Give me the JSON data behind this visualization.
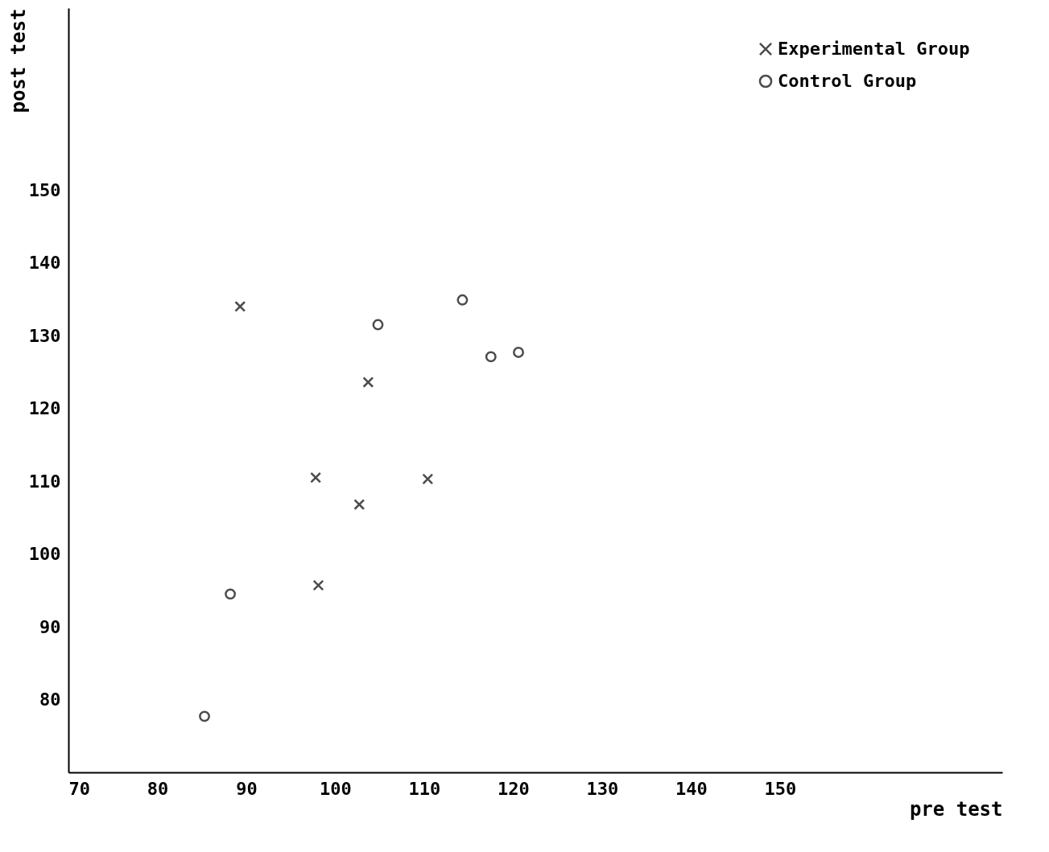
{
  "chart_data": {
    "type": "scatter",
    "xlabel": "pre test",
    "ylabel": "post test",
    "xlim": [
      70,
      175
    ],
    "ylim": [
      70,
      175
    ],
    "xticks": [
      70,
      80,
      90,
      100,
      110,
      120,
      130,
      140,
      150
    ],
    "yticks": [
      80,
      90,
      100,
      110,
      120,
      130,
      140,
      150
    ],
    "grid": false,
    "legend": "top right",
    "series": [
      {
        "name": "Experimental Group",
        "color": "#000000",
        "marker": "cross",
        "x": [
          89.3,
          103.7,
          97.8,
          110.4,
          102.7,
          98.1
        ],
        "values": [
          134,
          123.6,
          110.5,
          110.3,
          106.8,
          95.7
        ]
      },
      {
        "name": "Control Group",
        "color": "#000000",
        "marker": "circle",
        "x": [
          114.3,
          104.8,
          117.5,
          120.6,
          88.2,
          85.3
        ],
        "values": [
          134.9,
          131.5,
          127.1,
          127.7,
          94.5,
          77.7
        ]
      }
    ]
  }
}
